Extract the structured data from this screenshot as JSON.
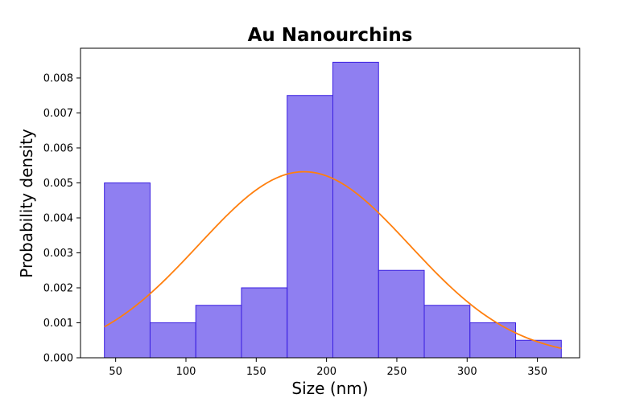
{
  "chart_data": {
    "type": "bar",
    "title": "Au Nanourchins",
    "xlabel": "Size (nm)",
    "ylabel": "Probability density",
    "xlim": [
      25,
      380
    ],
    "ylim": [
      0,
      0.00885
    ],
    "xticks": [
      50,
      100,
      150,
      200,
      250,
      300,
      350
    ],
    "xtick_labels": [
      "50",
      "100",
      "150",
      "200",
      "250",
      "300",
      "350"
    ],
    "yticks": [
      0,
      0.001,
      0.002,
      0.003,
      0.004,
      0.005,
      0.006,
      0.007,
      0.008
    ],
    "ytick_labels": [
      "0.000",
      "0.001",
      "0.002",
      "0.003",
      "0.004",
      "0.005",
      "0.006",
      "0.007",
      "0.008"
    ],
    "histogram": {
      "bin_edges": [
        42,
        74.5,
        107,
        139.5,
        172,
        204.5,
        237,
        269.5,
        302,
        334.5,
        367
      ],
      "values": [
        0.005,
        0.001,
        0.0015,
        0.002,
        0.0075,
        0.00845,
        0.0025,
        0.0015,
        0.001,
        0.0005
      ],
      "color": "#7b68ee",
      "edge_color": "#3a1fe0"
    },
    "fit_curve": {
      "type": "normal",
      "mean": 184,
      "std": 75,
      "x_range": [
        42,
        367
      ],
      "color": "#ff7f0e"
    },
    "grid": false,
    "legend": "none"
  }
}
